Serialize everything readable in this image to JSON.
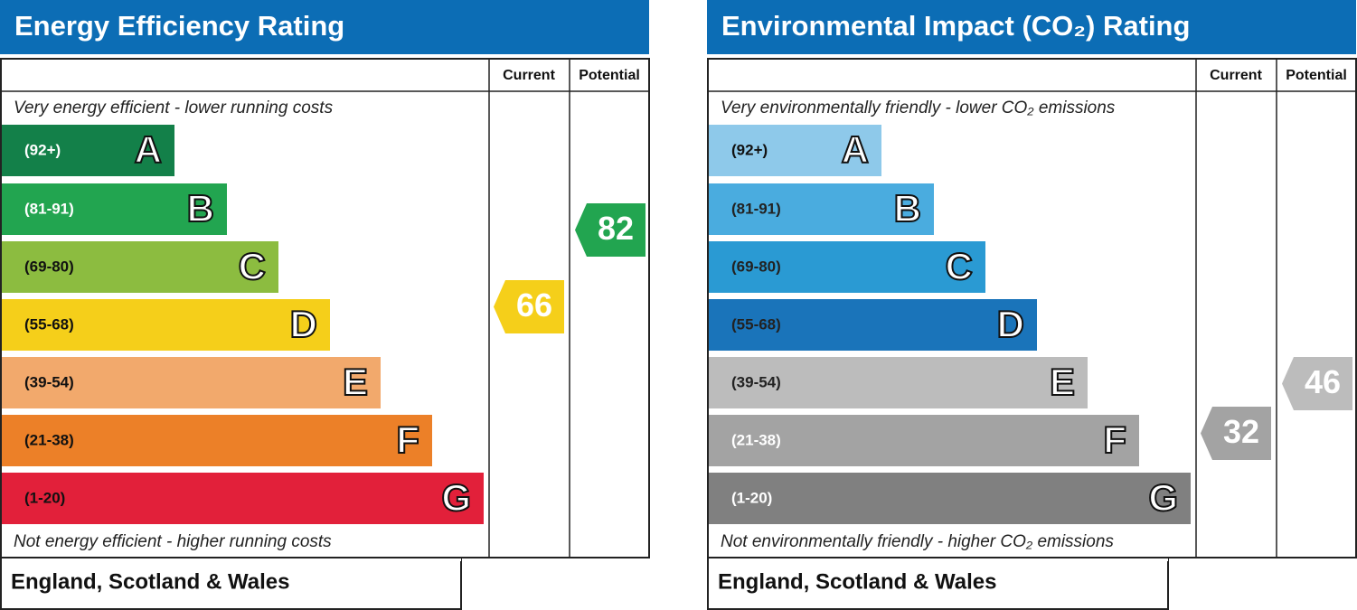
{
  "panels": [
    {
      "title": "Energy Efficiency Rating",
      "columns": [
        "Current",
        "Potential"
      ],
      "top_note": "Very energy efficient - lower running costs",
      "bottom_note": "Not energy efficient - higher running costs",
      "bands": [
        {
          "range": "(92+)",
          "letter": "A",
          "color": "#138049",
          "text_color": "#ffffff"
        },
        {
          "range": "(81-91)",
          "letter": "B",
          "color": "#22a550",
          "text_color": "#ffffff"
        },
        {
          "range": "(69-80)",
          "letter": "C",
          "color": "#8cbc40",
          "text_color": "#111111"
        },
        {
          "range": "(55-68)",
          "letter": "D",
          "color": "#f5cf1a",
          "text_color": "#111111"
        },
        {
          "range": "(39-54)",
          "letter": "E",
          "color": "#f2a96c",
          "text_color": "#111111"
        },
        {
          "range": "(21-38)",
          "letter": "F",
          "color": "#ec8028",
          "text_color": "#111111"
        },
        {
          "range": "(1-20)",
          "letter": "G",
          "color": "#e2203a",
          "text_color": "#111111"
        }
      ],
      "current": {
        "value": 66,
        "color": "#f5cf1a"
      },
      "potential": {
        "value": 82,
        "color": "#22a550"
      },
      "footer": "England, Scotland & Wales"
    },
    {
      "title": "Environmental Impact (CO₂) Rating",
      "columns": [
        "Current",
        "Potential"
      ],
      "top_note": "Very environmentally friendly - lower CO₂ emissions",
      "bottom_note": "Not environmentally friendly - higher CO₂ emissions",
      "bands": [
        {
          "range": "(92+)",
          "letter": "A",
          "color": "#8ec9ea",
          "text_color": "#111111"
        },
        {
          "range": "(81-91)",
          "letter": "B",
          "color": "#4aacdf",
          "text_color": "#222222"
        },
        {
          "range": "(69-80)",
          "letter": "C",
          "color": "#2a9ad3",
          "text_color": "#222222"
        },
        {
          "range": "(55-68)",
          "letter": "D",
          "color": "#1a74ba",
          "text_color": "#222222"
        },
        {
          "range": "(39-54)",
          "letter": "E",
          "color": "#bcbcbc",
          "text_color": "#222222"
        },
        {
          "range": "(21-38)",
          "letter": "F",
          "color": "#a3a3a3",
          "text_color": "#ffffff"
        },
        {
          "range": "(1-20)",
          "letter": "G",
          "color": "#808080",
          "text_color": "#ffffff"
        }
      ],
      "current": {
        "value": 32,
        "color": "#a3a3a3"
      },
      "potential": {
        "value": 46,
        "color": "#bcbcbc"
      },
      "footer": "England, Scotland & Wales"
    }
  ]
}
